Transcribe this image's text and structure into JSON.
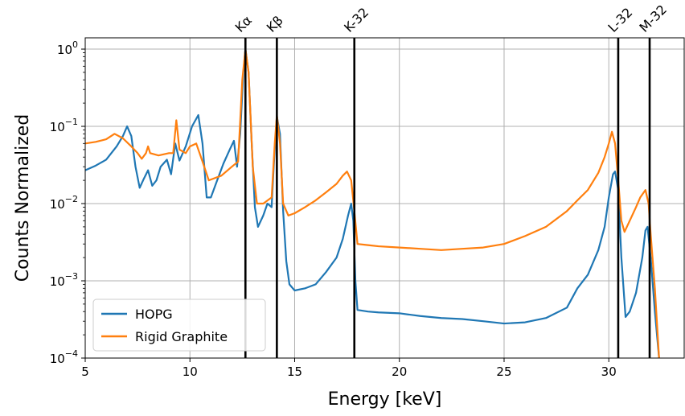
{
  "chart_data": {
    "type": "line",
    "title": "",
    "xlabel": "Energy [keV]",
    "ylabel": "Counts Normalized",
    "xlim": [
      5,
      33.6
    ],
    "ylim": [
      0.0001,
      1.4
    ],
    "yscale": "log",
    "grid": true,
    "legend_position": "bottom-left",
    "x_ticks": [
      5,
      10,
      15,
      20,
      25,
      30
    ],
    "x_tick_labels": [
      "5",
      "10",
      "15",
      "20",
      "25",
      "30"
    ],
    "y_ticks": [
      0.0001,
      0.001,
      0.01,
      0.1,
      1
    ],
    "y_tick_labels": [
      {
        "base": "10",
        "exp": "−4"
      },
      {
        "base": "10",
        "exp": "−3"
      },
      {
        "base": "10",
        "exp": "−2"
      },
      {
        "base": "10",
        "exp": "−1"
      },
      {
        "base": "10",
        "exp": "0"
      }
    ],
    "markers": [
      {
        "label": "Kα",
        "x": 12.65
      },
      {
        "label": "Kβ",
        "x": 14.15
      },
      {
        "label": "K-32",
        "x": 17.85
      },
      {
        "label": "L-32",
        "x": 30.45
      },
      {
        "label": "M-32",
        "x": 31.95
      }
    ],
    "series": [
      {
        "name": "HOPG",
        "color": "#1f77b4",
        "points": [
          [
            5.0,
            0.027
          ],
          [
            5.5,
            0.031
          ],
          [
            6.0,
            0.037
          ],
          [
            6.5,
            0.055
          ],
          [
            6.8,
            0.075
          ],
          [
            7.0,
            0.1
          ],
          [
            7.2,
            0.075
          ],
          [
            7.4,
            0.03
          ],
          [
            7.6,
            0.016
          ],
          [
            7.8,
            0.021
          ],
          [
            8.0,
            0.027
          ],
          [
            8.2,
            0.017
          ],
          [
            8.4,
            0.02
          ],
          [
            8.6,
            0.03
          ],
          [
            8.9,
            0.037
          ],
          [
            9.1,
            0.024
          ],
          [
            9.3,
            0.06
          ],
          [
            9.5,
            0.036
          ],
          [
            9.8,
            0.055
          ],
          [
            10.1,
            0.1
          ],
          [
            10.4,
            0.14
          ],
          [
            10.6,
            0.06
          ],
          [
            10.8,
            0.012
          ],
          [
            11.0,
            0.012
          ],
          [
            11.3,
            0.02
          ],
          [
            11.6,
            0.033
          ],
          [
            11.9,
            0.05
          ],
          [
            12.1,
            0.065
          ],
          [
            12.25,
            0.03
          ],
          [
            12.4,
            0.08
          ],
          [
            12.55,
            0.5
          ],
          [
            12.65,
            1.0
          ],
          [
            12.8,
            0.5
          ],
          [
            12.95,
            0.06
          ],
          [
            13.1,
            0.009
          ],
          [
            13.25,
            0.005
          ],
          [
            13.5,
            0.007
          ],
          [
            13.7,
            0.01
          ],
          [
            13.9,
            0.009
          ],
          [
            14.0,
            0.03
          ],
          [
            14.15,
            0.135
          ],
          [
            14.3,
            0.08
          ],
          [
            14.45,
            0.008
          ],
          [
            14.6,
            0.0018
          ],
          [
            14.75,
            0.0009
          ],
          [
            15.0,
            0.00075
          ],
          [
            15.5,
            0.0008
          ],
          [
            16.0,
            0.0009
          ],
          [
            16.5,
            0.0013
          ],
          [
            17.0,
            0.002
          ],
          [
            17.3,
            0.0035
          ],
          [
            17.55,
            0.007
          ],
          [
            17.7,
            0.01
          ],
          [
            17.8,
            0.006
          ],
          [
            17.9,
            0.001
          ],
          [
            18.0,
            0.00042
          ],
          [
            18.5,
            0.0004
          ],
          [
            19.0,
            0.00039
          ],
          [
            20.0,
            0.00038
          ],
          [
            21.0,
            0.00035
          ],
          [
            22.0,
            0.00033
          ],
          [
            23.0,
            0.00032
          ],
          [
            24.0,
            0.0003
          ],
          [
            25.0,
            0.00028
          ],
          [
            26.0,
            0.00029
          ],
          [
            27.0,
            0.00033
          ],
          [
            28.0,
            0.00045
          ],
          [
            28.5,
            0.0008
          ],
          [
            29.0,
            0.0012
          ],
          [
            29.5,
            0.0025
          ],
          [
            29.8,
            0.005
          ],
          [
            30.0,
            0.012
          ],
          [
            30.2,
            0.024
          ],
          [
            30.3,
            0.026
          ],
          [
            30.45,
            0.015
          ],
          [
            30.6,
            0.002
          ],
          [
            30.8,
            0.00034
          ],
          [
            31.0,
            0.0004
          ],
          [
            31.3,
            0.0007
          ],
          [
            31.6,
            0.002
          ],
          [
            31.75,
            0.0045
          ],
          [
            31.85,
            0.005
          ],
          [
            32.0,
            0.002
          ],
          [
            32.2,
            0.0004
          ],
          [
            32.4,
            0.0001
          ]
        ]
      },
      {
        "name": "Rigid Graphite",
        "color": "#ff7f0e",
        "points": [
          [
            5.0,
            0.06
          ],
          [
            5.5,
            0.063
          ],
          [
            6.0,
            0.068
          ],
          [
            6.4,
            0.08
          ],
          [
            6.8,
            0.07
          ],
          [
            7.2,
            0.055
          ],
          [
            7.5,
            0.045
          ],
          [
            7.7,
            0.038
          ],
          [
            7.9,
            0.045
          ],
          [
            8.0,
            0.055
          ],
          [
            8.1,
            0.045
          ],
          [
            8.5,
            0.042
          ],
          [
            9.0,
            0.045
          ],
          [
            9.2,
            0.045
          ],
          [
            9.35,
            0.12
          ],
          [
            9.5,
            0.05
          ],
          [
            9.8,
            0.045
          ],
          [
            10.0,
            0.055
          ],
          [
            10.3,
            0.06
          ],
          [
            10.6,
            0.035
          ],
          [
            10.9,
            0.02
          ],
          [
            11.5,
            0.023
          ],
          [
            12.0,
            0.03
          ],
          [
            12.3,
            0.035
          ],
          [
            12.5,
            0.4
          ],
          [
            12.65,
            1.0
          ],
          [
            12.8,
            0.5
          ],
          [
            13.0,
            0.03
          ],
          [
            13.2,
            0.01
          ],
          [
            13.5,
            0.01
          ],
          [
            13.9,
            0.012
          ],
          [
            14.05,
            0.06
          ],
          [
            14.15,
            0.14
          ],
          [
            14.3,
            0.06
          ],
          [
            14.45,
            0.01
          ],
          [
            14.7,
            0.007
          ],
          [
            15.0,
            0.0075
          ],
          [
            15.5,
            0.009
          ],
          [
            16.0,
            0.011
          ],
          [
            16.5,
            0.014
          ],
          [
            17.0,
            0.018
          ],
          [
            17.3,
            0.023
          ],
          [
            17.5,
            0.026
          ],
          [
            17.7,
            0.02
          ],
          [
            17.85,
            0.008
          ],
          [
            18.0,
            0.003
          ],
          [
            18.5,
            0.0029
          ],
          [
            19.0,
            0.0028
          ],
          [
            20.0,
            0.0027
          ],
          [
            21.0,
            0.0026
          ],
          [
            22.0,
            0.0025
          ],
          [
            23.0,
            0.0026
          ],
          [
            24.0,
            0.0027
          ],
          [
            25.0,
            0.003
          ],
          [
            26.0,
            0.0038
          ],
          [
            27.0,
            0.005
          ],
          [
            28.0,
            0.008
          ],
          [
            28.5,
            0.011
          ],
          [
            29.0,
            0.015
          ],
          [
            29.5,
            0.025
          ],
          [
            29.8,
            0.04
          ],
          [
            30.0,
            0.06
          ],
          [
            30.15,
            0.085
          ],
          [
            30.3,
            0.06
          ],
          [
            30.45,
            0.02
          ],
          [
            30.6,
            0.006
          ],
          [
            30.75,
            0.0043
          ],
          [
            31.0,
            0.006
          ],
          [
            31.3,
            0.009
          ],
          [
            31.5,
            0.012
          ],
          [
            31.75,
            0.015
          ],
          [
            31.9,
            0.01
          ],
          [
            32.0,
            0.004
          ],
          [
            32.2,
            0.0008
          ],
          [
            32.4,
            0.0001
          ]
        ]
      }
    ]
  }
}
